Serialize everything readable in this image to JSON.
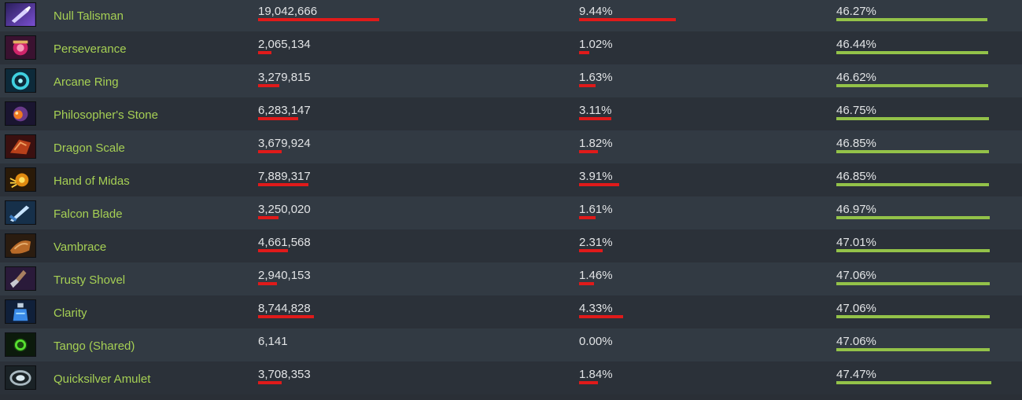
{
  "colors": {
    "item_name": "#a6d054",
    "bar_red": "#e01a1a",
    "bar_green": "#93c249",
    "row_even": "#323a43",
    "row_odd": "#2b3139"
  },
  "rows": [
    {
      "item": "Null Talisman",
      "icon": "null-talisman-icon",
      "matches": "19,042,666",
      "matches_value": 19042666,
      "use_rate": "9.44%",
      "use_rate_value": 9.44,
      "win_rate": "46.27%",
      "win_rate_value": 46.27
    },
    {
      "item": "Perseverance",
      "icon": "perseverance-icon",
      "matches": "2,065,134",
      "matches_value": 2065134,
      "use_rate": "1.02%",
      "use_rate_value": 1.02,
      "win_rate": "46.44%",
      "win_rate_value": 46.44
    },
    {
      "item": "Arcane Ring",
      "icon": "arcane-ring-icon",
      "matches": "3,279,815",
      "matches_value": 3279815,
      "use_rate": "1.63%",
      "use_rate_value": 1.63,
      "win_rate": "46.62%",
      "win_rate_value": 46.62
    },
    {
      "item": "Philosopher's Stone",
      "icon": "philosophers-stone-icon",
      "matches": "6,283,147",
      "matches_value": 6283147,
      "use_rate": "3.11%",
      "use_rate_value": 3.11,
      "win_rate": "46.75%",
      "win_rate_value": 46.75
    },
    {
      "item": "Dragon Scale",
      "icon": "dragon-scale-icon",
      "matches": "3,679,924",
      "matches_value": 3679924,
      "use_rate": "1.82%",
      "use_rate_value": 1.82,
      "win_rate": "46.85%",
      "win_rate_value": 46.85
    },
    {
      "item": "Hand of Midas",
      "icon": "hand-of-midas-icon",
      "matches": "7,889,317",
      "matches_value": 7889317,
      "use_rate": "3.91%",
      "use_rate_value": 3.91,
      "win_rate": "46.85%",
      "win_rate_value": 46.85
    },
    {
      "item": "Falcon Blade",
      "icon": "falcon-blade-icon",
      "matches": "3,250,020",
      "matches_value": 3250020,
      "use_rate": "1.61%",
      "use_rate_value": 1.61,
      "win_rate": "46.97%",
      "win_rate_value": 46.97
    },
    {
      "item": "Vambrace",
      "icon": "vambrace-icon",
      "matches": "4,661,568",
      "matches_value": 4661568,
      "use_rate": "2.31%",
      "use_rate_value": 2.31,
      "win_rate": "47.01%",
      "win_rate_value": 47.01
    },
    {
      "item": "Trusty Shovel",
      "icon": "trusty-shovel-icon",
      "matches": "2,940,153",
      "matches_value": 2940153,
      "use_rate": "1.46%",
      "use_rate_value": 1.46,
      "win_rate": "47.06%",
      "win_rate_value": 47.06
    },
    {
      "item": "Clarity",
      "icon": "clarity-icon",
      "matches": "8,744,828",
      "matches_value": 8744828,
      "use_rate": "4.33%",
      "use_rate_value": 4.33,
      "win_rate": "47.06%",
      "win_rate_value": 47.06
    },
    {
      "item": "Tango (Shared)",
      "icon": "tango-shared-icon",
      "matches": "6,141",
      "matches_value": 6141,
      "use_rate": "0.00%",
      "use_rate_value": 0.0,
      "win_rate": "47.06%",
      "win_rate_value": 47.06
    },
    {
      "item": "Quicksilver Amulet",
      "icon": "quicksilver-amulet-icon",
      "matches": "3,708,353",
      "matches_value": 3708353,
      "use_rate": "1.84%",
      "use_rate_value": 1.84,
      "win_rate": "47.47%",
      "win_rate_value": 47.47
    }
  ]
}
